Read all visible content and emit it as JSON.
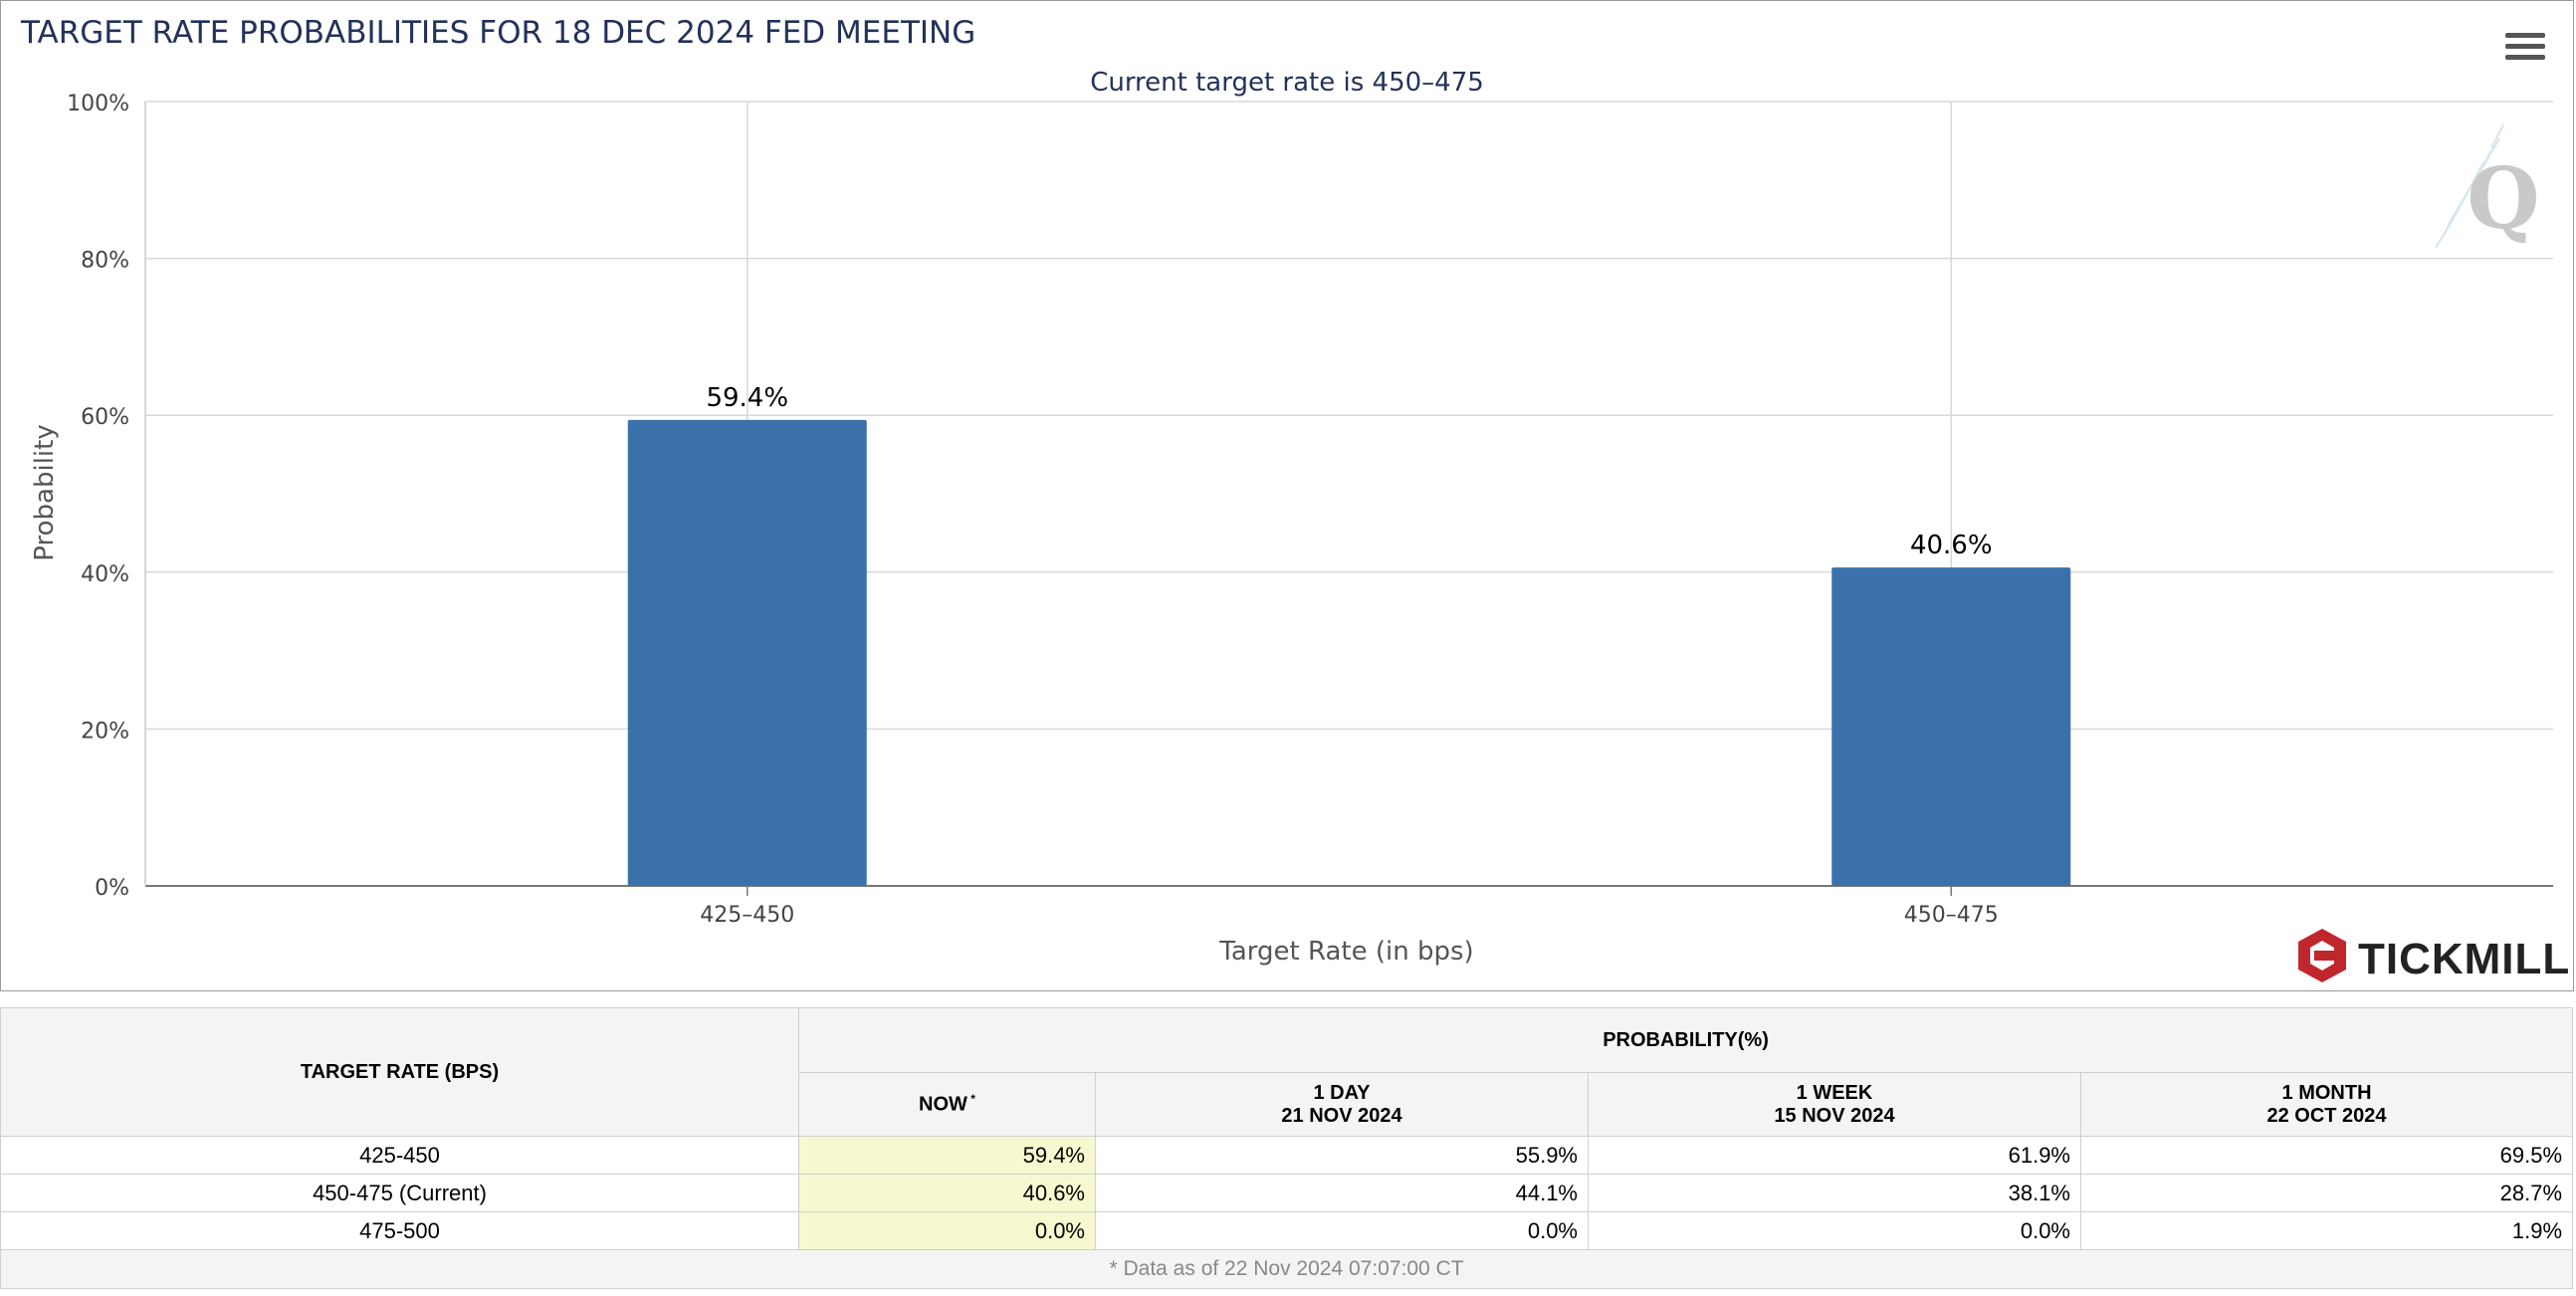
{
  "chart_data": {
    "type": "bar",
    "title": "TARGET RATE PROBABILITIES FOR 18 DEC 2024 FED MEETING",
    "subtitle": "Current target rate is 450–475",
    "xlabel": "Target Rate (in bps)",
    "ylabel": "Probability",
    "categories": [
      "425–450",
      "450–475"
    ],
    "values": [
      59.4,
      40.6
    ],
    "data_labels": [
      "59.4%",
      "40.6%"
    ],
    "ylim": [
      0,
      100
    ],
    "yticks": [
      "0%",
      "20%",
      "40%",
      "60%",
      "80%",
      "100%"
    ],
    "ytick_values": [
      0,
      20,
      40,
      60,
      80,
      100
    ],
    "grid": true,
    "bar_color": "#3b71ab"
  },
  "brand": {
    "name": "TICKMILL",
    "color": "#c0272d"
  },
  "watermark": {
    "letter": "Q"
  },
  "table": {
    "header_left": "TARGET RATE (BPS)",
    "header_group": "PROBABILITY(%)",
    "columns": [
      {
        "line1": "NOW",
        "line2": "",
        "star": "*"
      },
      {
        "line1": "1 DAY",
        "line2": "21 NOV 2024",
        "star": ""
      },
      {
        "line1": "1 WEEK",
        "line2": "15 NOV 2024",
        "star": ""
      },
      {
        "line1": "1 MONTH",
        "line2": "22 OCT 2024",
        "star": ""
      }
    ],
    "rows": [
      {
        "rate": "425-450",
        "values": [
          "59.4%",
          "55.9%",
          "61.9%",
          "69.5%"
        ]
      },
      {
        "rate": "450-475 (Current)",
        "values": [
          "40.6%",
          "44.1%",
          "38.1%",
          "28.7%"
        ]
      },
      {
        "rate": "475-500",
        "values": [
          "0.0%",
          "0.0%",
          "0.0%",
          "1.9%"
        ]
      }
    ],
    "footnote": "* Data as of 22 Nov 2024 07:07:00 CT"
  }
}
